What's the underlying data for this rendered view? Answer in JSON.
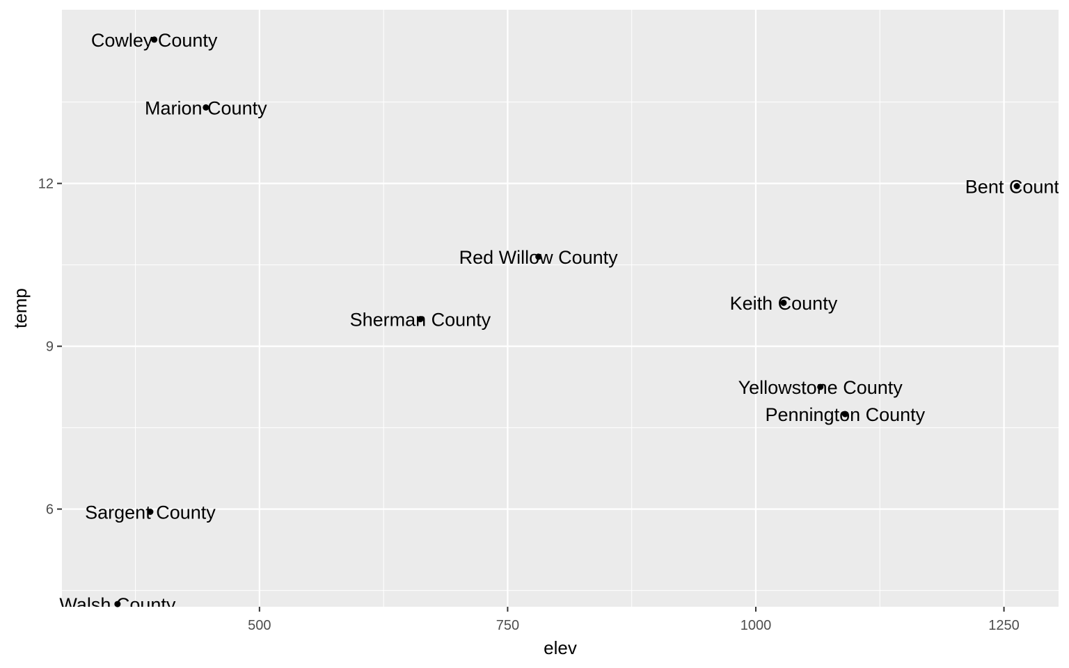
{
  "chart_data": {
    "type": "scatter",
    "xlabel": "elev",
    "ylabel": "temp",
    "xlim": [
      301,
      1305
    ],
    "ylim": [
      4.2,
      15.2
    ],
    "x_ticks": [
      500,
      750,
      1000,
      1250
    ],
    "x_minor_ticks": [
      375,
      625,
      875,
      1125
    ],
    "y_ticks": [
      6,
      9,
      12
    ],
    "y_minor_ticks": [
      4.5,
      7.5,
      10.5,
      13.5
    ],
    "x_tick_labels": [
      "500",
      "750",
      "1000",
      "1250"
    ],
    "y_tick_labels": [
      "6",
      "9",
      "12"
    ],
    "grid": true,
    "legend": "none",
    "panel_background": "#ebebeb",
    "gridline_color": "#ffffff",
    "point_color": "#000000",
    "points": [
      {
        "label": "Cowley County",
        "x": 394,
        "y": 14.65
      },
      {
        "label": "Marion County",
        "x": 446,
        "y": 13.4
      },
      {
        "label": "Bent County",
        "x": 1263,
        "y": 11.95
      },
      {
        "label": "Red Willow County",
        "x": 781,
        "y": 10.65
      },
      {
        "label": "Sherman County",
        "x": 662,
        "y": 9.5
      },
      {
        "label": "Keith County",
        "x": 1028,
        "y": 9.8
      },
      {
        "label": "Yellowstone County",
        "x": 1065,
        "y": 8.25
      },
      {
        "label": "Pennington County",
        "x": 1090,
        "y": 7.75
      },
      {
        "label": "Sargent County",
        "x": 390,
        "y": 5.95
      },
      {
        "label": "Walsh County",
        "x": 357,
        "y": 4.25
      }
    ]
  }
}
